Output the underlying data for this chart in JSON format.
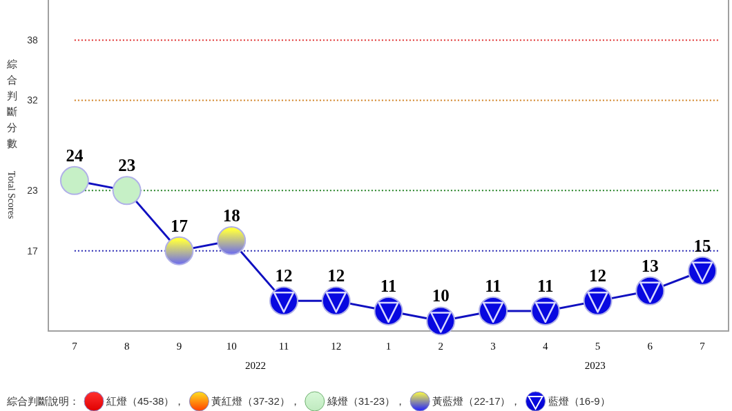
{
  "chart_data": {
    "type": "line",
    "ylabel": "綜合判斷分數",
    "categories": [
      "7",
      "8",
      "9",
      "10",
      "11",
      "12",
      "1",
      "2",
      "3",
      "4",
      "5",
      "6",
      "7"
    ],
    "series": [
      {
        "color": "#1010c0",
        "values": [
          24,
          23,
          17,
          18,
          12,
          12,
          11,
          10,
          11,
          11,
          12,
          13,
          15
        ],
        "colors": [
          "#c6f0c6",
          "#c6f0c6",
          "#6a6af0",
          "#6a6af0",
          "#0808e0",
          "#0808e0",
          "#0808e0",
          "#0808e0",
          "#0808e0",
          "#0808e0",
          "#0808e0",
          "#0808e0",
          "#0808e0"
        ]
      }
    ],
    "ylim": [
      9,
      42
    ],
    "yticks": [
      17,
      23,
      32,
      38
    ],
    "data_labels": true,
    "marker": "circle",
    "grid": false,
    "ref_lines": [
      {
        "axis": "y",
        "value": 38,
        "color": "#e03030",
        "line_style": "dotted"
      },
      {
        "axis": "y",
        "value": 32,
        "color": "#d08020",
        "line_style": "dotted"
      },
      {
        "axis": "y",
        "value": 23,
        "color": "#208020",
        "line_style": "dotted"
      },
      {
        "axis": "y",
        "value": 17,
        "color": "#2020b0",
        "line_style": "dotted"
      }
    ],
    "annotations": [
      "2022",
      "2023",
      "Total Scores",
      "綜合判斷說明：",
      "紅燈（45-38），",
      "黃紅燈（37-32），",
      "綠燈（31-23），",
      "黃藍燈（22-17），",
      "藍燈（16-9）"
    ]
  }
}
